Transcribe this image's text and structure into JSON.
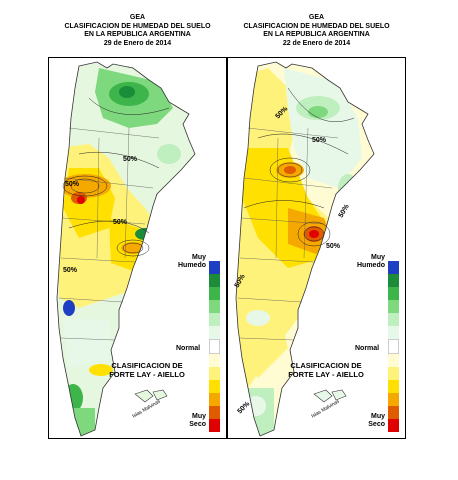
{
  "maps": [
    {
      "header": {
        "org": "GEA",
        "title": "CLASIFICACION DE HUMEDAD DEL SUELO",
        "region": "EN LA REPUBLICA ARGENTINA",
        "date": "29  de Enero de 2014"
      },
      "contour_labels": [
        "50%",
        "50%",
        "50%",
        "50%"
      ]
    },
    {
      "header": {
        "org": "GEA",
        "title": "CLASIFICACION DE HUMEDAD DEL SUELO",
        "region": "EN LA REPUBLICA ARGENTINA",
        "date": "22 de Enero de 2014"
      },
      "contour_labels": [
        "50%",
        "50%",
        "50%",
        "50%",
        "50%",
        "50%"
      ]
    }
  ],
  "legend": {
    "wet_label": "Muy\nHumedo",
    "normal_label": "Normal",
    "dry_label": "Muy\nSeco",
    "classification_line1": "CLASIFICACION DE",
    "classification_line2": "FORTE LAY - AIELLO",
    "island_label": "Islas Malvinas",
    "scale_colors": [
      "#1f3fc2",
      "#1a8c3a",
      "#3db54a",
      "#7ed87e",
      "#bfeebf",
      "#e8f8e8",
      "#ffffff",
      "#fffbd2",
      "#fff27a",
      "#ffe000",
      "#f5a800",
      "#e05a00",
      "#e00000"
    ]
  }
}
